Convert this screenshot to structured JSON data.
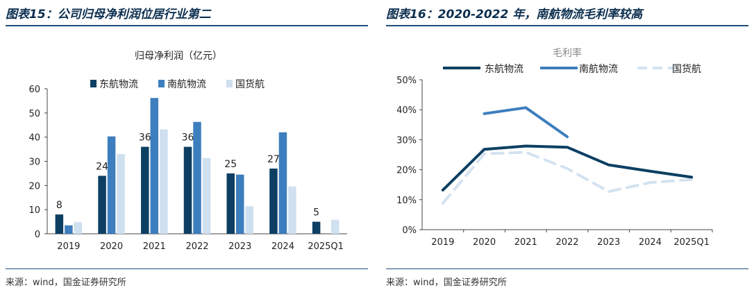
{
  "left_panel": {
    "figure_title": "图表15：公司归母净利润位居行业第二",
    "source": "来源：wind，国金证券研究所"
  },
  "right_panel": {
    "figure_title": "图表16：2020-2022 年，南航物流毛利率较高",
    "source": "来源：wind，国金证券研究所"
  },
  "chart_data": [
    {
      "type": "bar",
      "title": "归母净利润（亿元）",
      "categories": [
        "2019",
        "2020",
        "2021",
        "2022",
        "2023",
        "2024",
        "2025Q1"
      ],
      "series": [
        {
          "name": "东航物流",
          "values": [
            8,
            24,
            36,
            36,
            25,
            27,
            5
          ],
          "color": "#0d3f63"
        },
        {
          "name": "南航物流",
          "values": [
            3.5,
            40.3,
            56.2,
            46.3,
            24.5,
            42,
            null
          ],
          "color": "#3d7ebe"
        },
        {
          "name": "国货航",
          "values": [
            4.8,
            33,
            43.2,
            31.3,
            11.4,
            19.6,
            5.8
          ],
          "color": "#cfe0f0"
        }
      ],
      "data_labels": [
        "8",
        "24",
        "36",
        "36",
        "25",
        "27",
        "5"
      ],
      "ylim": [
        0,
        60
      ],
      "yticks": [
        "0",
        "10",
        "20",
        "30",
        "40",
        "50",
        "60"
      ],
      "legend": "top",
      "grid": false
    },
    {
      "type": "line",
      "title": "毛利率",
      "categories": [
        "2019",
        "2020",
        "2021",
        "2022",
        "2023",
        "2024",
        "2025Q1"
      ],
      "series": [
        {
          "name": "东航物流",
          "values": [
            13.2,
            26.8,
            27.9,
            27.5,
            21.6,
            19.5,
            17.5
          ],
          "color": "#0d3f63",
          "dash": false
        },
        {
          "name": "南航物流",
          "values": [
            null,
            38.7,
            40.7,
            31.0,
            null,
            null,
            null
          ],
          "color": "#3d7ebe",
          "dash": false
        },
        {
          "name": "国货航",
          "values": [
            8.8,
            25.3,
            25.8,
            20.4,
            12.7,
            15.7,
            16.7
          ],
          "color": "#d4e2f0",
          "dash": true
        }
      ],
      "ylim": [
        0,
        50
      ],
      "yticks": [
        "0%",
        "10%",
        "20%",
        "30%",
        "40%",
        "50%"
      ],
      "legend": "top",
      "grid": false
    }
  ]
}
